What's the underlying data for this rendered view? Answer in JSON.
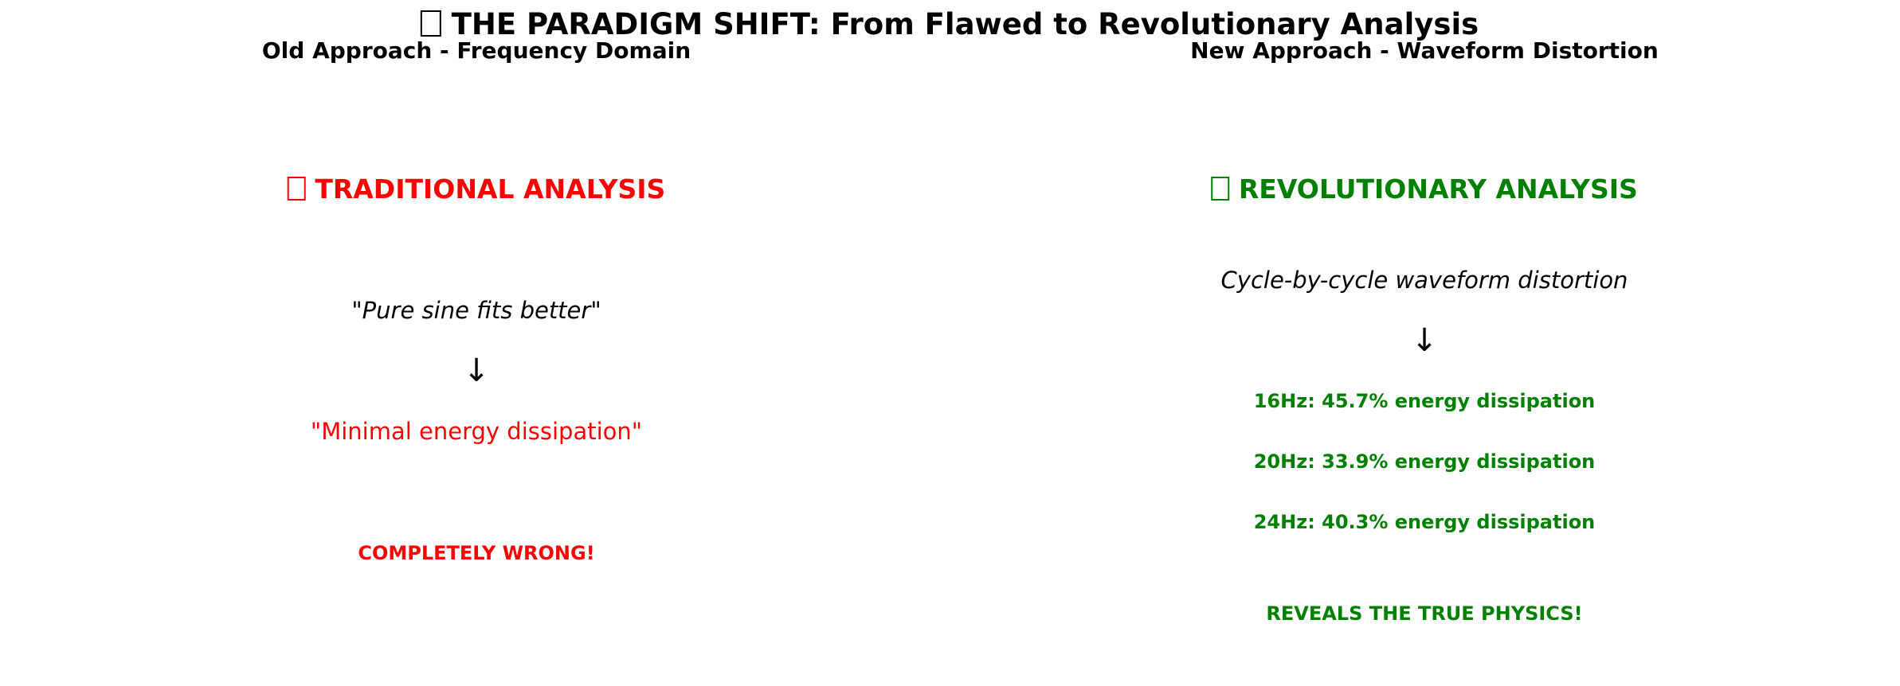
{
  "title": {
    "icon": "unknown-glyph-box",
    "text": "THE PARADIGM SHIFT: From Flawed to Revolutionary Analysis"
  },
  "left_panel": {
    "subtitle": "Old Approach - Frequency Domain",
    "heading_icon": "unknown-glyph-box",
    "heading": "TRADITIONAL ANALYSIS",
    "heading_color": "#ff0000",
    "quote": "\"Pure sine fits better\"",
    "arrow": "↓",
    "result": "\"Minimal energy dissipation\"",
    "result_color": "#ff0000",
    "verdict": "COMPLETELY WRONG!",
    "verdict_color": "#ff0000"
  },
  "right_panel": {
    "subtitle": "New Approach - Waveform Distortion",
    "heading_icon": "unknown-glyph-box",
    "heading": "REVOLUTIONARY ANALYSIS",
    "heading_color": "#008000",
    "method": "Cycle-by-cycle waveform distortion",
    "arrow": "↓",
    "results": [
      "16Hz: 45.7% energy dissipation",
      "20Hz: 33.9% energy dissipation",
      "24Hz: 40.3% energy dissipation"
    ],
    "results_color": "#008000",
    "verdict": "REVEALS THE TRUE PHYSICS!",
    "verdict_color": "#008000"
  }
}
